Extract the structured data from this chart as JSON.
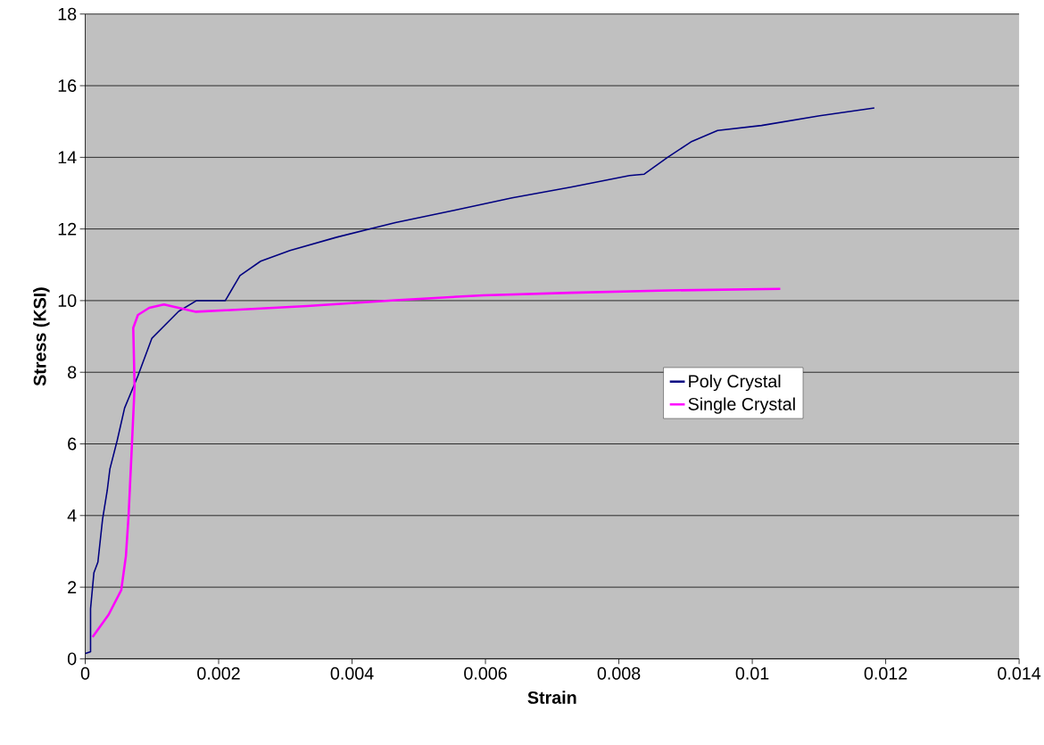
{
  "chart_data": {
    "type": "line",
    "xlabel": "Strain",
    "ylabel": "Stress (KSI)",
    "xlim": [
      0,
      0.014
    ],
    "ylim": [
      0,
      18
    ],
    "xticks": [
      0,
      0.002,
      0.004,
      0.006,
      0.008,
      0.01,
      0.012,
      0.014
    ],
    "yticks": [
      0,
      2,
      4,
      6,
      8,
      10,
      12,
      14,
      16,
      18
    ],
    "grid": "y",
    "legend": "right",
    "marker": "none",
    "line_style": "solid",
    "series": [
      {
        "name": "Poly Crystal",
        "color": "#000080",
        "x": [
          0,
          8e-05,
          8e-05,
          0.00013,
          0.00019,
          0.00026,
          0.00033,
          0.00037,
          0.00048,
          0.00059,
          0.00079,
          0.001,
          0.0014,
          0.00167,
          0.00192,
          0.0021,
          0.00232,
          0.00263,
          0.00307,
          0.00377,
          0.00465,
          0.00553,
          0.0064,
          0.00728,
          0.00816,
          0.00838,
          0.00873,
          0.00908,
          0.00948,
          0.01014,
          0.01101,
          0.01183
        ],
        "values": [
          0.15,
          0.2,
          1.4,
          2.4,
          2.7,
          3.9,
          4.7,
          5.3,
          6.1,
          7.0,
          7.9,
          8.95,
          9.7,
          10.0,
          10.0,
          10.0,
          10.7,
          11.1,
          11.4,
          11.77,
          12.18,
          12.52,
          12.87,
          13.17,
          13.49,
          13.53,
          14.0,
          14.43,
          14.75,
          14.89,
          15.16,
          15.38
        ]
      },
      {
        "name": "Single Crystal",
        "color": "#ff00ff",
        "x": [
          0.00011,
          0.00035,
          0.00054,
          0.00061,
          0.00065,
          0.0007,
          0.00074,
          0.00072,
          0.00079,
          0.00096,
          0.00118,
          0.00166,
          0.0021,
          0.00333,
          0.00465,
          0.00597,
          0.00728,
          0.0086,
          0.01042
        ],
        "values": [
          0.61,
          1.23,
          1.92,
          2.87,
          4.0,
          5.97,
          7.6,
          9.24,
          9.6,
          9.8,
          9.89,
          9.69,
          9.73,
          9.85,
          10.01,
          10.15,
          10.22,
          10.28,
          10.33
        ]
      }
    ]
  }
}
